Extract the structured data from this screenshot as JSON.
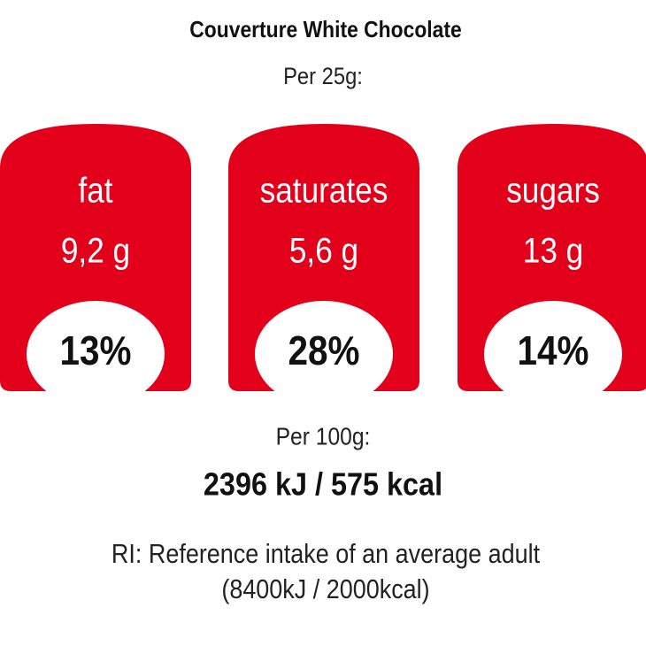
{
  "title": "Couverture White Chocolate",
  "serving": "Per 25g:",
  "nutrients": [
    {
      "name": "fat",
      "amount": "9,2 g",
      "ri_percent": "13%"
    },
    {
      "name": "saturates",
      "amount": "5,6 g",
      "ri_percent": "28%"
    },
    {
      "name": "sugars",
      "amount": "13 g",
      "ri_percent": "14%"
    }
  ],
  "per_100g": "Per 100g:",
  "energy": "2396 kJ / 575 kcal",
  "ri_note": "RI: Reference intake of an average adult",
  "ri_basis": "(8400kJ / 2000kcal)"
}
